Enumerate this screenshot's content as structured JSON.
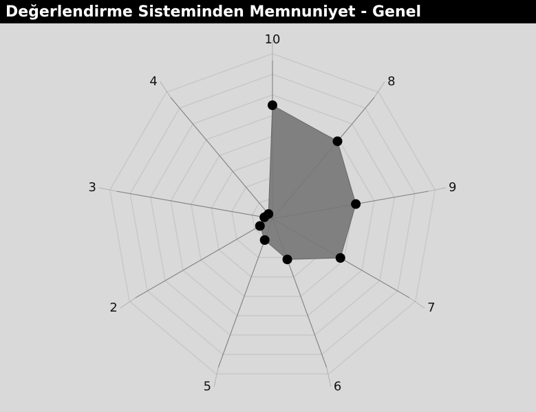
{
  "chart_data": {
    "type": "radar",
    "title": "Değerlendirme Sisteminden Memnuniyet - Genel",
    "categories": [
      "10",
      "8",
      "9",
      "7",
      "6",
      "5",
      "2",
      "3",
      "4"
    ],
    "values": [
      5.5,
      4.9,
      4.1,
      3.8,
      2.1,
      1.1,
      0.7,
      0.4,
      0.3
    ],
    "color": "#808080",
    "rlim": [
      0,
      8
    ],
    "rticks": [
      1,
      2,
      3,
      4,
      5,
      6,
      7,
      8
    ],
    "grid": true
  }
}
